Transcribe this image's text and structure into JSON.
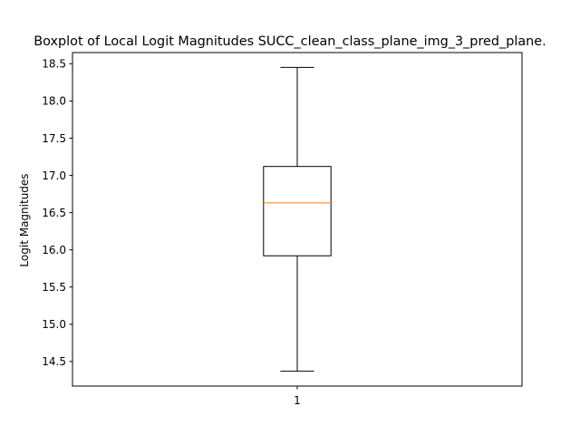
{
  "chart_data": {
    "type": "boxplot",
    "title": "Boxplot of Local Logit Magnitudes SUCC_clean_class_plane_img_3_pred_plane.",
    "xlabel": "",
    "ylabel": "Logit Magnitudes",
    "categories": [
      "1"
    ],
    "boxes": [
      {
        "name": "1",
        "whisker_low": 14.37,
        "q1": 15.92,
        "median": 16.63,
        "q3": 17.12,
        "whisker_high": 18.45
      }
    ],
    "ylim": [
      14.17,
      18.65
    ],
    "yticks": [
      14.5,
      15.0,
      15.5,
      16.0,
      16.5,
      17.0,
      17.5,
      18.0,
      18.5
    ],
    "ytick_labels": [
      "14.5",
      "15.0",
      "15.5",
      "16.0",
      "16.5",
      "17.0",
      "17.5",
      "18.0",
      "18.5"
    ],
    "grid": false,
    "colors": {
      "box": "#000000",
      "median": "#ff7f0e",
      "whisker": "#000000"
    }
  }
}
